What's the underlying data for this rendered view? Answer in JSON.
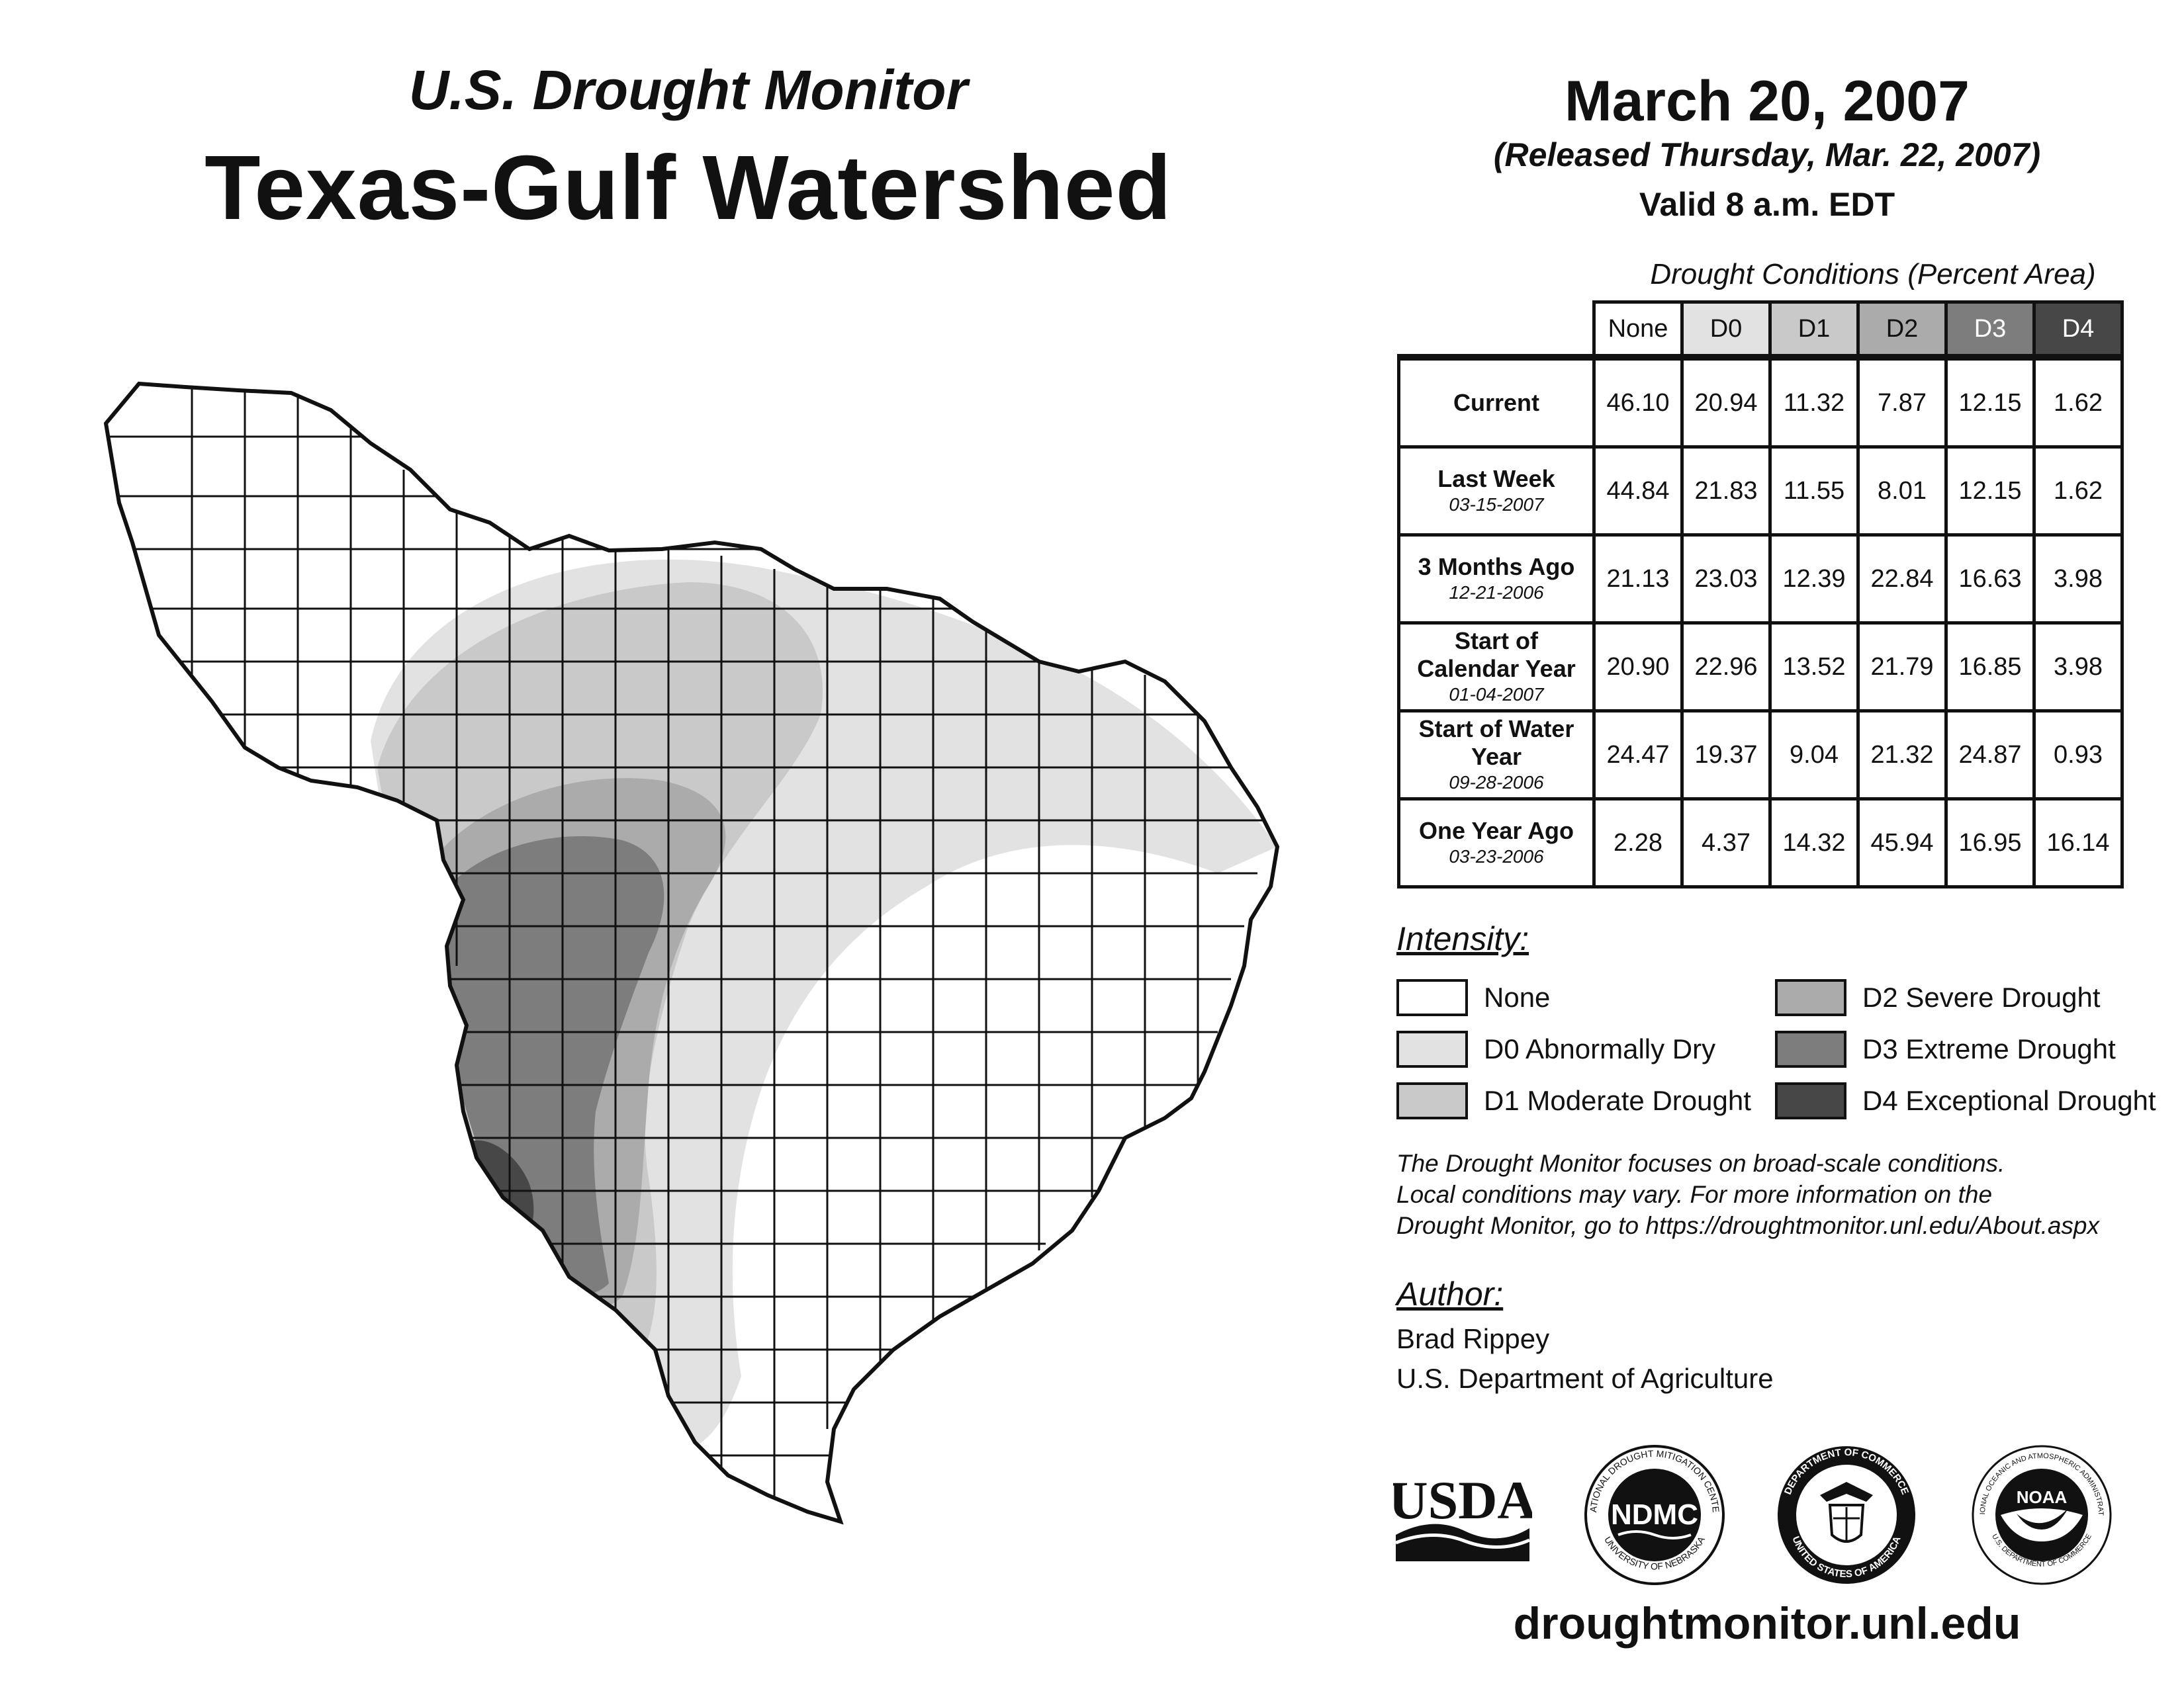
{
  "header": {
    "subtitle": "U.S. Drought Monitor",
    "title": "Texas-Gulf Watershed",
    "date": "March 20, 2007",
    "released": "(Released Thursday, Mar. 22, 2007)",
    "valid": "Valid 8 a.m. EDT"
  },
  "table": {
    "caption": "Drought Conditions (Percent Area)",
    "columns": [
      "None",
      "D0",
      "D1",
      "D2",
      "D3",
      "D4"
    ],
    "column_colors": [
      "#ffffff",
      "#e2e2e2",
      "#c9c9c9",
      "#ababab",
      "#7d7d7d",
      "#474747"
    ],
    "rows": [
      {
        "label": "Current",
        "date": "",
        "values": [
          "46.10",
          "20.94",
          "11.32",
          "7.87",
          "12.15",
          "1.62"
        ]
      },
      {
        "label": "Last Week",
        "date": "03-15-2007",
        "values": [
          "44.84",
          "21.83",
          "11.55",
          "8.01",
          "12.15",
          "1.62"
        ]
      },
      {
        "label": "3 Months Ago",
        "date": "12-21-2006",
        "values": [
          "21.13",
          "23.03",
          "12.39",
          "22.84",
          "16.63",
          "3.98"
        ]
      },
      {
        "label": "Start of Calendar Year",
        "date": "01-04-2007",
        "values": [
          "20.90",
          "22.96",
          "13.52",
          "21.79",
          "16.85",
          "3.98"
        ]
      },
      {
        "label": "Start of Water Year",
        "date": "09-28-2006",
        "values": [
          "24.47",
          "19.37",
          "9.04",
          "21.32",
          "24.87",
          "0.93"
        ]
      },
      {
        "label": "One Year Ago",
        "date": "03-23-2006",
        "values": [
          "2.28",
          "4.37",
          "14.32",
          "45.94",
          "16.95",
          "16.14"
        ]
      }
    ]
  },
  "legend": {
    "title": "Intensity:",
    "items": [
      {
        "label": "None",
        "color": "#ffffff"
      },
      {
        "label": "D0 Abnormally Dry",
        "color": "#e2e2e2"
      },
      {
        "label": "D1 Moderate Drought",
        "color": "#c9c9c9"
      },
      {
        "label": "D2 Severe Drought",
        "color": "#ababab"
      },
      {
        "label": "D3 Extreme Drought",
        "color": "#7d7d7d"
      },
      {
        "label": "D4 Exceptional Drought",
        "color": "#474747"
      }
    ]
  },
  "disclaimer": [
    "The Drought Monitor focuses on broad-scale conditions.",
    "Local conditions may vary. For more information on the",
    "Drought Monitor, go to https://droughtmonitor.unl.edu/About.aspx"
  ],
  "author": {
    "title": "Author:",
    "name": "Brad Rippey",
    "org": "U.S. Department of Agriculture"
  },
  "logos": {
    "usda": "USDA",
    "ndmc": "NDMC",
    "ndmc_ring_top": "NATIONAL DROUGHT MITIGATION CENTER",
    "ndmc_ring_bottom": "UNIVERSITY OF NEBRASKA",
    "doc_ring_top": "DEPARTMENT OF COMMERCE",
    "doc_ring_bottom": "UNITED STATES OF AMERICA",
    "noaa": "NOAA",
    "noaa_ring_top": "NATIONAL OCEANIC AND ATMOSPHERIC ADMINISTRATION",
    "noaa_ring_bottom": "U.S. DEPARTMENT OF COMMERCE"
  },
  "url": "droughtmonitor.unl.edu"
}
